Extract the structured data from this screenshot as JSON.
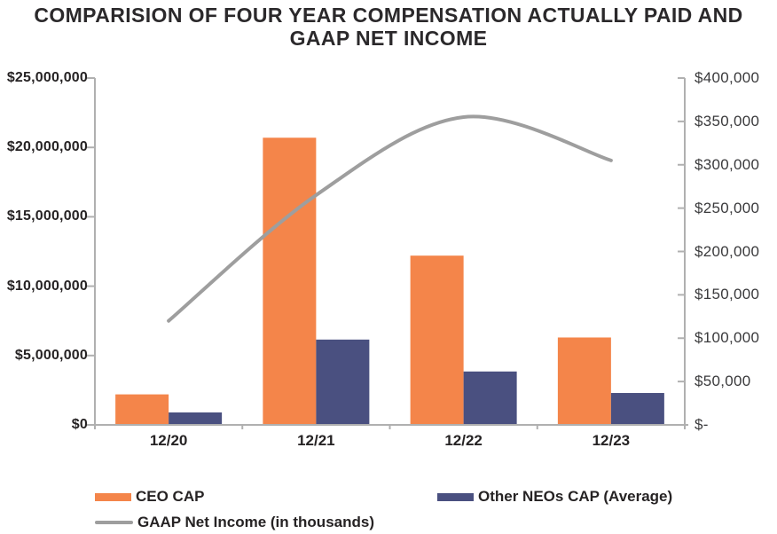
{
  "title": {
    "line1": "COMPARISION OF FOUR YEAR COMPENSATION ACTUALLY PAID AND",
    "line2": "GAAP NET INCOME"
  },
  "colors": {
    "ceo_cap": "#F4854A",
    "neo_cap": "#4A5080",
    "gaap_line": "#9E9E9E",
    "axis": "#B0B0B0",
    "text": "#262324"
  },
  "chart_data": {
    "type": "bar",
    "subtype": "grouped-bars-with-smoothed-line-dual-axis",
    "title": "COMPARISION OF FOUR YEAR COMPENSATION ACTUALLY PAID AND GAAP NET INCOME",
    "categories": [
      "12/20",
      "12/21",
      "12/22",
      "12/23"
    ],
    "series": [
      {
        "name": "CEO CAP",
        "type": "bar",
        "axis": "left",
        "color": "#F4854A",
        "values": [
          2200000,
          20700000,
          12200000,
          6300000
        ]
      },
      {
        "name": "Other NEOs CAP (Average)",
        "type": "bar",
        "axis": "left",
        "color": "#4A5080",
        "values": [
          900000,
          6150000,
          3850000,
          2300000
        ]
      },
      {
        "name": "GAAP Net Income (in thousands)",
        "type": "line",
        "axis": "right",
        "smooth": true,
        "color": "#9E9E9E",
        "values": [
          120000,
          265000,
          355000,
          305000
        ]
      }
    ],
    "left_axis": {
      "min": 0,
      "max": 25000000,
      "tick_step": 5000000,
      "tick_labels_top_to_bottom": [
        "$25,000,000",
        "$20,000,000",
        "$15,000,000",
        "$10,000,000",
        "$5,000,000",
        "$0"
      ]
    },
    "right_axis": {
      "min": 0,
      "max": 400000,
      "tick_step": 50000,
      "tick_labels_top_to_bottom": [
        "$400,000",
        "$350,000",
        "$300,000",
        "$250,000",
        "$200,000",
        "$150,000",
        "$100,000",
        "$50,000",
        "$-"
      ]
    },
    "grid": false,
    "legend_position": "bottom"
  }
}
